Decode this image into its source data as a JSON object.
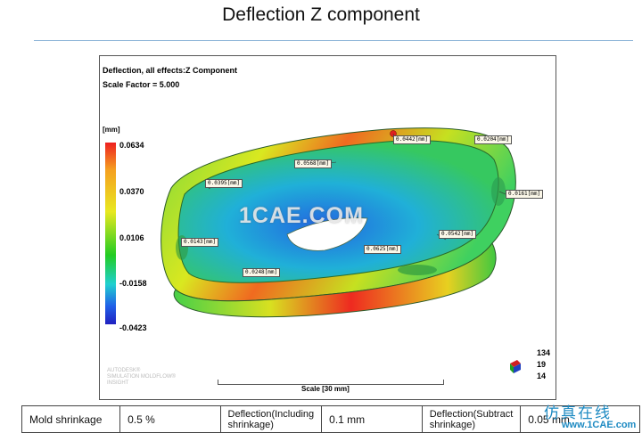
{
  "slide": {
    "title": "Deflection Z component"
  },
  "viewport": {
    "title": "Deflection, all effects:Z Component",
    "scale_factor": "Scale Factor = 5.000",
    "unit": "[mm]",
    "legend": {
      "max": "0.0634",
      "v2": "0.0370",
      "v3": "0.0106",
      "v4": "-0.0158",
      "min": "-0.0423"
    },
    "annotations": [
      "0.0442[mm]",
      "0.0204[mm]",
      "0.0568[mm]",
      "0.0395[mm]",
      "0.0161[mm]",
      "0.0143[mm]",
      "0.0542[mm]",
      "0.0625[mm]",
      "0.0248[mm]"
    ],
    "watermark": "1CAE.COM",
    "autodesk_text": [
      "AUTODESK®",
      "SIMULATION MOLDFLOW®",
      "INSIGHT"
    ],
    "scale_label": "Scale [30 mm]",
    "axis_numbers": [
      "134",
      "19",
      "14"
    ],
    "colors": {
      "high": "#ee2020",
      "mid": "#22cc22",
      "low": "#2020c0"
    }
  },
  "table": {
    "cells": [
      "Mold shrinkage",
      "0.5 %",
      "Deflection(Including shrinkage)",
      "0.1 mm",
      "Deflection(Subtract shrinkage)",
      "0.05 mm"
    ]
  },
  "logo": {
    "cn": "仿真在线",
    "url": "www.1CAE.com"
  }
}
